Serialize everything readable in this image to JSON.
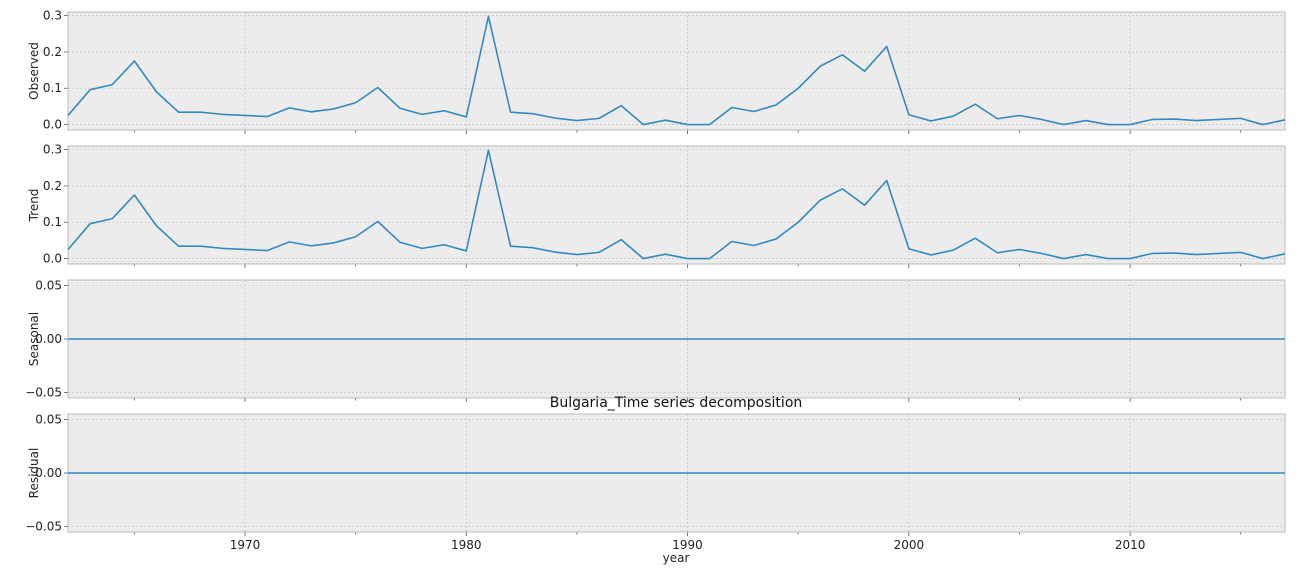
{
  "title": "Bulgaria_Time series decomposition",
  "xlabel": "year",
  "colors": {
    "line": "#348abd",
    "panel_bg": "#ececec",
    "grid": "#c8c8c8",
    "frame": "#bcbcbc"
  },
  "chart_data": [
    {
      "type": "line",
      "ylabel": "Observed",
      "x": [
        1962,
        1963,
        1964,
        1965,
        1966,
        1967,
        1968,
        1969,
        1970,
        1971,
        1972,
        1973,
        1974,
        1975,
        1976,
        1977,
        1978,
        1979,
        1980,
        1981,
        1982,
        1983,
        1984,
        1985,
        1986,
        1987,
        1988,
        1989,
        1990,
        1991,
        1992,
        1993,
        1994,
        1995,
        1996,
        1997,
        1998,
        1999,
        2000,
        2001,
        2002,
        2003,
        2004,
        2005,
        2006,
        2007,
        2008,
        2009,
        2010,
        2011,
        2012,
        2013,
        2014,
        2015,
        2016,
        2017
      ],
      "values": [
        0.025,
        0.096,
        0.11,
        0.175,
        0.09,
        0.034,
        0.034,
        0.028,
        0.025,
        0.022,
        0.046,
        0.035,
        0.043,
        0.06,
        0.102,
        0.045,
        0.028,
        0.038,
        0.021,
        0.298,
        0.034,
        0.03,
        0.018,
        0.011,
        0.017,
        0.052,
        0.0,
        0.012,
        0.0,
        0.0,
        0.047,
        0.036,
        0.054,
        0.1,
        0.161,
        0.192,
        0.147,
        0.215,
        0.027,
        0.01,
        0.023,
        0.056,
        0.016,
        0.025,
        0.014,
        0.0,
        0.011,
        0.0,
        0.0,
        0.014,
        0.015,
        0.011,
        0.014,
        0.017,
        0.0,
        0.013
      ],
      "ylim": [
        -0.015,
        0.31
      ],
      "yticks": [
        0.0,
        0.1,
        0.2,
        0.3
      ],
      "ytick_labels": [
        "0.0",
        "0.1",
        "0.2",
        "0.3"
      ]
    },
    {
      "type": "line",
      "ylabel": "Trend",
      "x": [
        1962,
        1963,
        1964,
        1965,
        1966,
        1967,
        1968,
        1969,
        1970,
        1971,
        1972,
        1973,
        1974,
        1975,
        1976,
        1977,
        1978,
        1979,
        1980,
        1981,
        1982,
        1983,
        1984,
        1985,
        1986,
        1987,
        1988,
        1989,
        1990,
        1991,
        1992,
        1993,
        1994,
        1995,
        1996,
        1997,
        1998,
        1999,
        2000,
        2001,
        2002,
        2003,
        2004,
        2005,
        2006,
        2007,
        2008,
        2009,
        2010,
        2011,
        2012,
        2013,
        2014,
        2015,
        2016,
        2017
      ],
      "values": [
        0.025,
        0.096,
        0.11,
        0.175,
        0.09,
        0.034,
        0.034,
        0.028,
        0.025,
        0.022,
        0.046,
        0.035,
        0.043,
        0.06,
        0.102,
        0.045,
        0.028,
        0.038,
        0.021,
        0.298,
        0.034,
        0.03,
        0.018,
        0.011,
        0.017,
        0.052,
        0.0,
        0.012,
        0.0,
        0.0,
        0.047,
        0.036,
        0.054,
        0.1,
        0.161,
        0.192,
        0.147,
        0.215,
        0.027,
        0.01,
        0.023,
        0.056,
        0.016,
        0.025,
        0.014,
        0.0,
        0.011,
        0.0,
        0.0,
        0.014,
        0.015,
        0.011,
        0.014,
        0.017,
        0.0,
        0.013
      ],
      "ylim": [
        -0.015,
        0.31
      ],
      "yticks": [
        0.0,
        0.1,
        0.2,
        0.3
      ],
      "ytick_labels": [
        "0.0",
        "0.1",
        "0.2",
        "0.3"
      ]
    },
    {
      "type": "line",
      "ylabel": "Seasonal",
      "x": [
        1962,
        2017
      ],
      "values": [
        0.0,
        0.0
      ],
      "ylim": [
        -0.055,
        0.055
      ],
      "yticks": [
        -0.05,
        0.0,
        0.05
      ],
      "ytick_labels": [
        "−0.05",
        "0.00",
        "0.05"
      ]
    },
    {
      "type": "line",
      "ylabel": "Residual",
      "x": [
        1962,
        2017
      ],
      "values": [
        0.0,
        0.0
      ],
      "ylim": [
        -0.055,
        0.055
      ],
      "yticks": [
        -0.05,
        0.0,
        0.05
      ],
      "ytick_labels": [
        "−0.05",
        "0.00",
        "0.05"
      ]
    }
  ],
  "xlim": [
    1962,
    2017
  ],
  "xticks": [
    1970,
    1980,
    1990,
    2000,
    2010
  ],
  "xtick_labels": [
    "1970",
    "1980",
    "1990",
    "2000",
    "2010"
  ],
  "minor_xticks": [
    1965,
    1975,
    1985,
    1995,
    2005,
    2015
  ],
  "grid": true
}
